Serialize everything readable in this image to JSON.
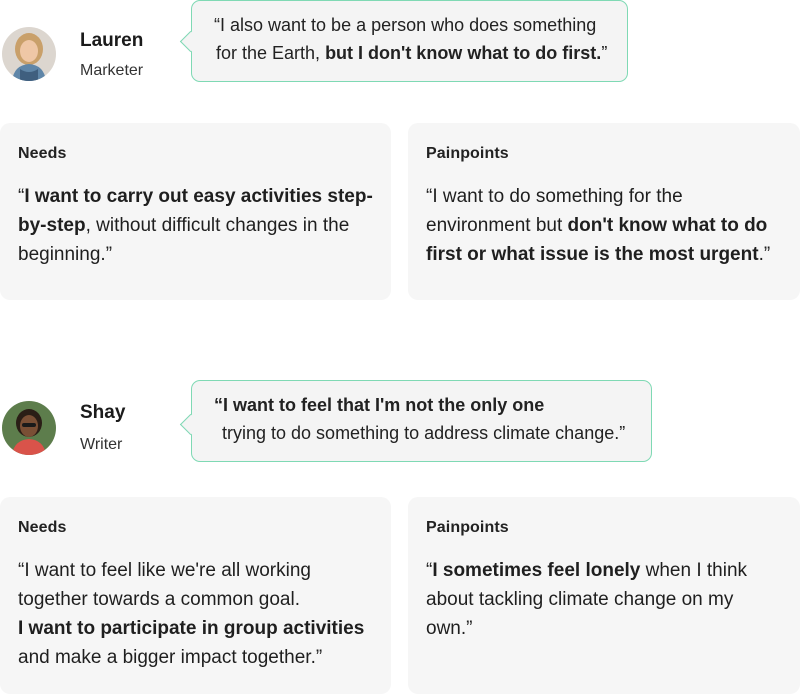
{
  "personas": [
    {
      "name": "Lauren",
      "role": "Marketer",
      "quote": {
        "line1": "“I also want to be a person who does something",
        "line2_plain": "for the Earth, ",
        "line2_bold": "but I don't know what to do first.",
        "line2_end": "”"
      },
      "needs": {
        "title": "Needs",
        "open": "“",
        "bold1": "I want to carry out easy activities step-by-step",
        "plain1": ", without difficult changes in the beginning.”"
      },
      "painpoints": {
        "title": "Painpoints",
        "plain1": "“I want to do something for the environment but ",
        "bold1": "don't know what to do first or what issue is the most urgent",
        "plain2": ".”"
      }
    },
    {
      "name": "Shay",
      "role": "Writer",
      "quote": {
        "line1_bold": "“I want to feel that I'm not the only one",
        "line2": "trying to do something to address climate change.”"
      },
      "needs": {
        "title": "Needs",
        "plain1": "“I want to feel like we're all working together towards a common goal.",
        "bold1": "I want to participate in group activities",
        "plain2": "and make a bigger impact together.”"
      },
      "painpoints": {
        "title": "Painpoints",
        "open": "“",
        "bold1": "I sometimes feel lonely",
        "plain1": " when I think about tackling climate change on my own.”"
      }
    }
  ],
  "colors": {
    "accent": "#7fd9b4",
    "card_bg": "#f6f6f6",
    "bubble_bg": "#f4f4f4"
  }
}
